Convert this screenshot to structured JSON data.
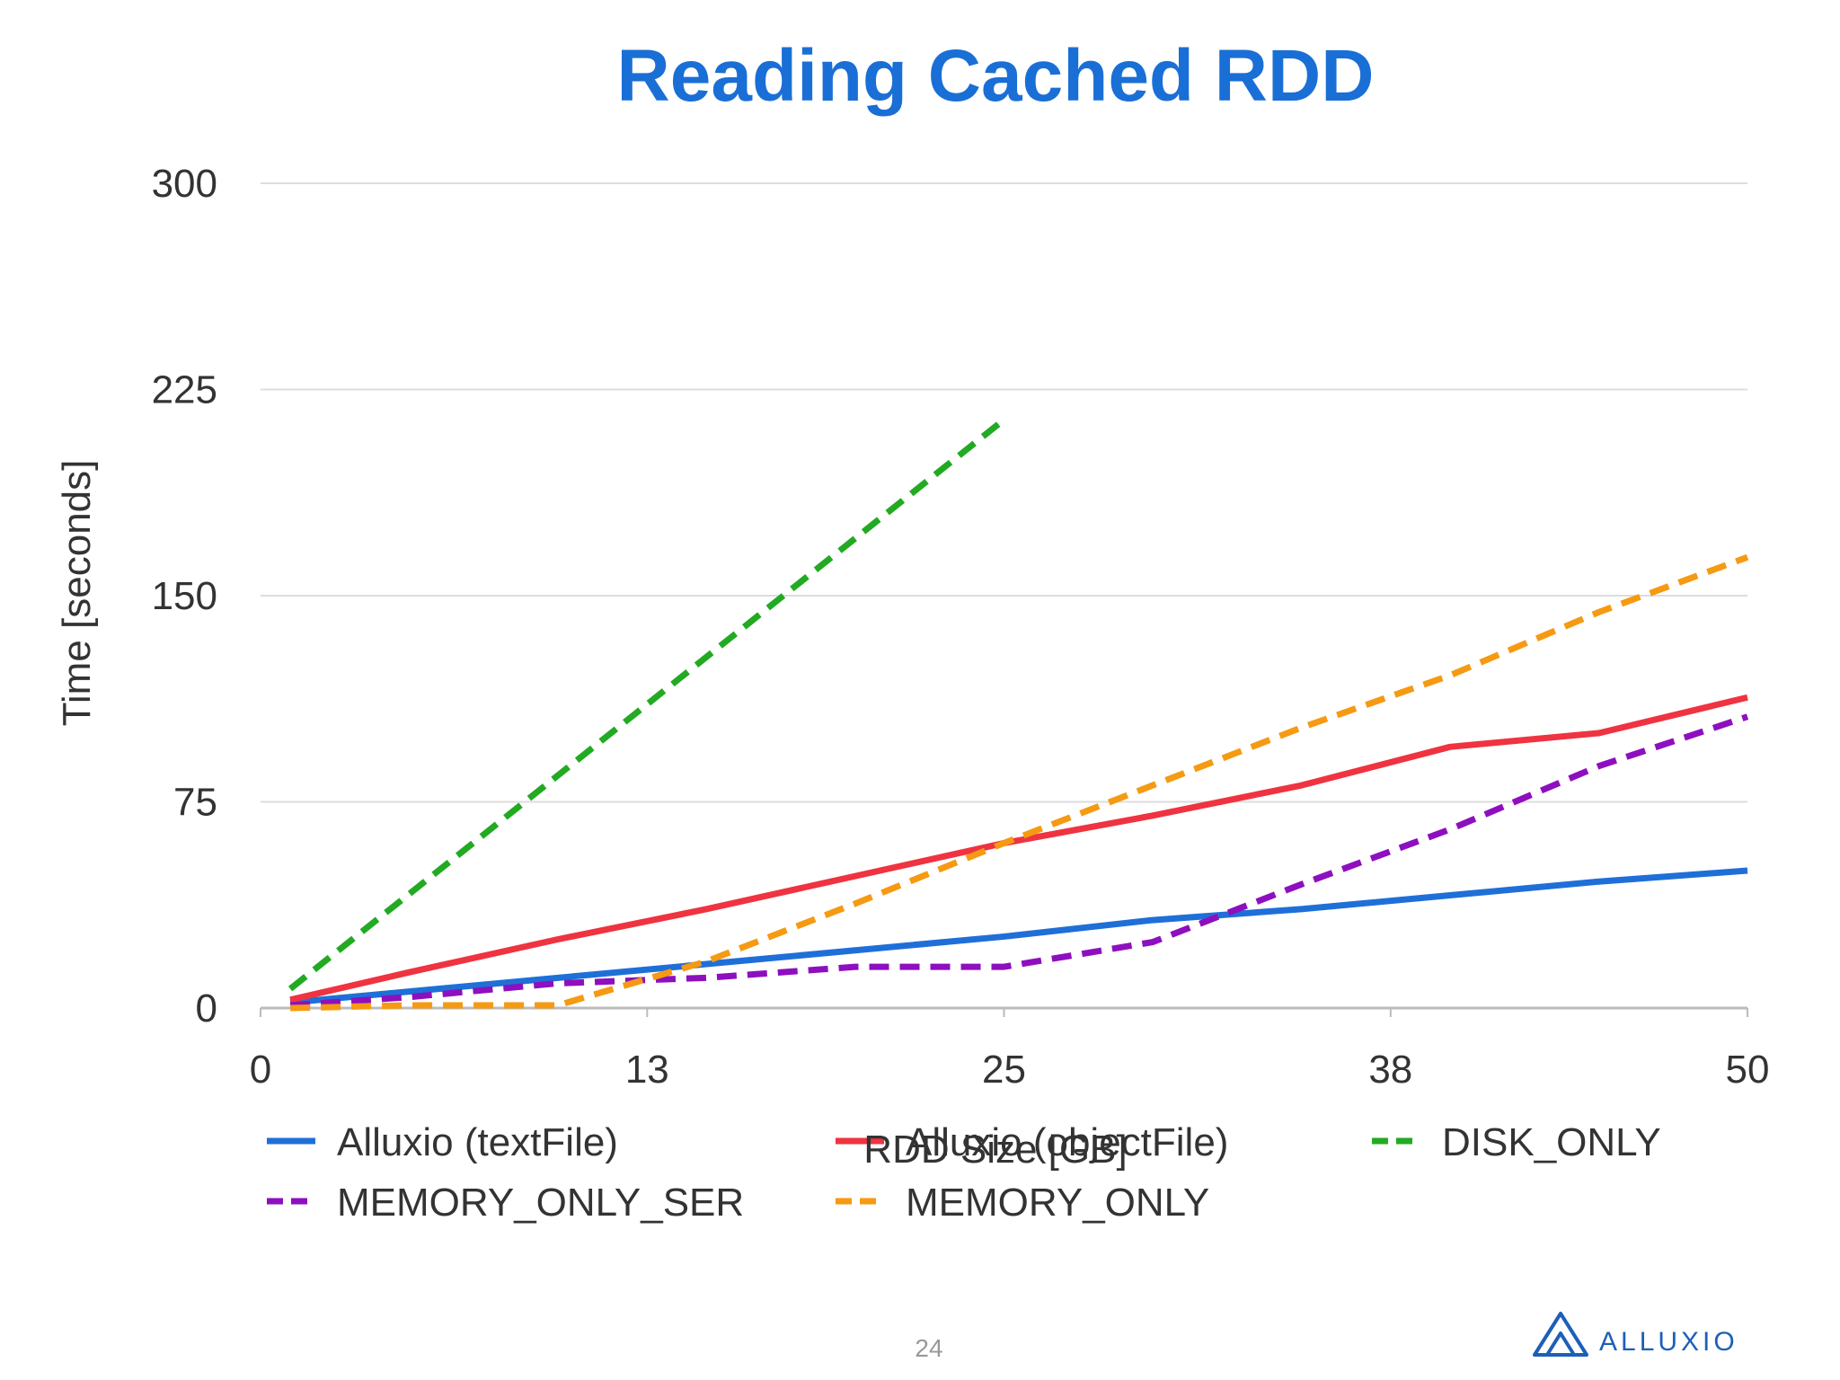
{
  "slide": {
    "title": "Reading Cached RDD",
    "page_number": "24",
    "brand": "ALLUXIO",
    "brand_color": "#1d5fb8"
  },
  "chart_data": {
    "type": "line",
    "title": "Reading Cached RDD",
    "xlabel": "RDD Size [GB]",
    "ylabel": "Time [seconds]",
    "xlim": [
      0,
      50
    ],
    "ylim": [
      0,
      300
    ],
    "x_ticks": [
      0,
      13,
      25,
      38,
      50
    ],
    "y_ticks": [
      0,
      75,
      150,
      225,
      300
    ],
    "grid": "horizontal",
    "legend_position": "bottom",
    "series": [
      {
        "name": "Alluxio (textFile)",
        "color": "#1f6fd8",
        "dashed": false,
        "x": [
          1,
          5,
          10,
          15,
          20,
          25,
          30,
          35,
          40,
          45,
          50
        ],
        "y": [
          2,
          6,
          11,
          16,
          21,
          26,
          32,
          36,
          41,
          46,
          50
        ]
      },
      {
        "name": "Alluxio (objectFile)",
        "color": "#ef3340",
        "dashed": false,
        "x": [
          1,
          5,
          10,
          15,
          20,
          25,
          30,
          35,
          40,
          45,
          50
        ],
        "y": [
          3,
          13,
          25,
          36,
          48,
          60,
          70,
          81,
          95,
          100,
          113
        ]
      },
      {
        "name": "DISK_ONLY",
        "color": "#22aa22",
        "dashed": true,
        "x": [
          1,
          25
        ],
        "y": [
          7,
          214
        ]
      },
      {
        "name": "MEMORY_ONLY_SER",
        "color": "#8e0fbf",
        "dashed": true,
        "x": [
          1,
          5,
          10,
          15,
          20,
          25,
          30,
          35,
          40,
          45,
          50
        ],
        "y": [
          1,
          4,
          9,
          11,
          15,
          15,
          24,
          45,
          65,
          88,
          106
        ]
      },
      {
        "name": "MEMORY_ONLY",
        "color": "#f59a12",
        "dashed": true,
        "x": [
          1,
          5,
          10,
          15,
          20,
          25,
          30,
          35,
          40,
          45,
          50
        ],
        "y": [
          0,
          1,
          1,
          17,
          38,
          60,
          81,
          102,
          121,
          144,
          164
        ]
      }
    ]
  }
}
